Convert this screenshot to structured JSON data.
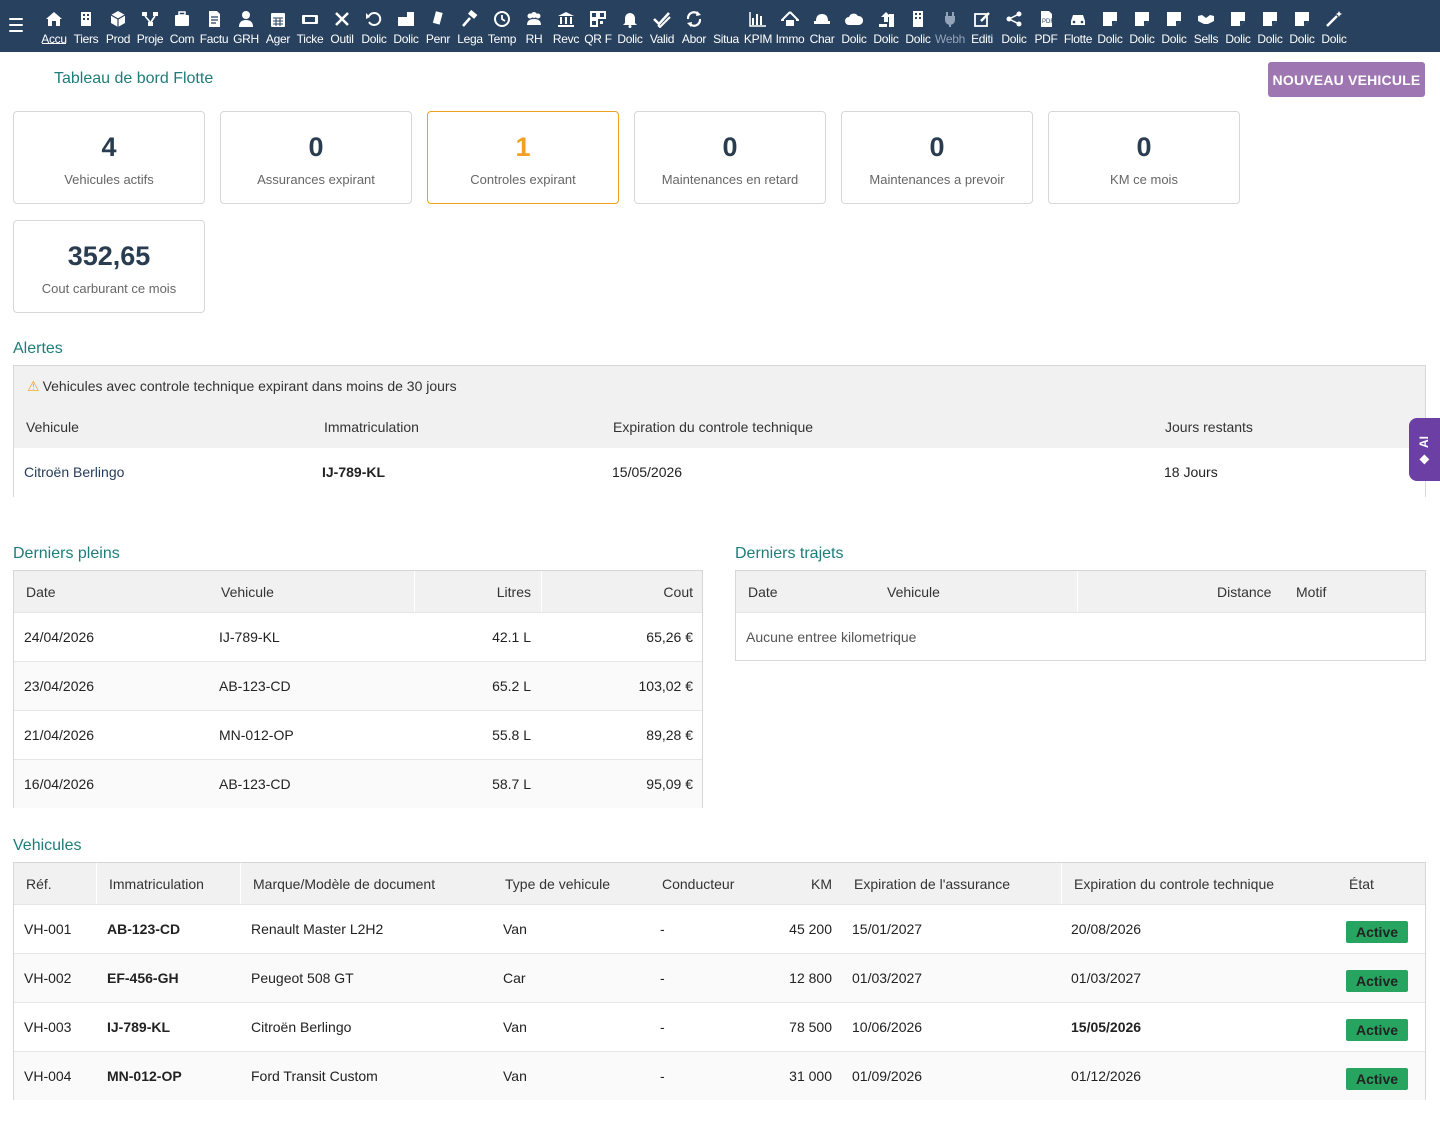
{
  "topbar": {
    "menu": [
      {
        "label": "Accu",
        "icon": "home-icon"
      },
      {
        "label": "Tiers",
        "icon": "building-icon"
      },
      {
        "label": "Prod",
        "icon": "cube-icon"
      },
      {
        "label": "Proje",
        "icon": "sitemap-icon"
      },
      {
        "label": "Com",
        "icon": "briefcase-icon"
      },
      {
        "label": "Factu",
        "icon": "invoice-icon"
      },
      {
        "label": "GRH",
        "icon": "user-tie-icon"
      },
      {
        "label": "Ager",
        "icon": "calendar-icon"
      },
      {
        "label": "Ticke",
        "icon": "ticket-icon"
      },
      {
        "label": "Outil",
        "icon": "tools-icon"
      },
      {
        "label": "Dolic",
        "icon": "undo-icon"
      },
      {
        "label": "Dolic",
        "icon": "briefcase-file-icon"
      },
      {
        "label": "Penr",
        "icon": "pen-icon"
      },
      {
        "label": "Lega",
        "icon": "gavel-icon"
      },
      {
        "label": "Temp",
        "icon": "clock-icon"
      },
      {
        "label": "RH",
        "icon": "users-icon"
      },
      {
        "label": "Revc",
        "icon": "bank-icon"
      },
      {
        "label": "QR F",
        "icon": "qrcode-icon"
      },
      {
        "label": "Dolic",
        "icon": "bell-icon"
      },
      {
        "label": "Valid",
        "icon": "check-double-icon"
      },
      {
        "label": "Abor",
        "icon": "sync-icon"
      },
      {
        "label": "Situa",
        "icon": "blank-icon"
      },
      {
        "label": "KPIM",
        "icon": "bar-chart-icon"
      },
      {
        "label": "Immo",
        "icon": "house-icon"
      },
      {
        "label": "Char",
        "icon": "hat-icon"
      },
      {
        "label": "Dolic",
        "icon": "cloud-icon"
      },
      {
        "label": "Dolic",
        "icon": "upload-file-icon"
      },
      {
        "label": "Dolic",
        "icon": "office-building-icon"
      },
      {
        "label": "Webh",
        "icon": "plug-icon"
      },
      {
        "label": "Editi",
        "icon": "edit-icon"
      },
      {
        "label": "Dolic",
        "icon": "share-icon"
      },
      {
        "label": "PDF",
        "icon": "pdf-file-icon"
      },
      {
        "label": "Flotte",
        "icon": "car-icon"
      },
      {
        "label": "Dolic",
        "icon": "sticky-note-icon"
      },
      {
        "label": "Dolic",
        "icon": "sticky-note-icon"
      },
      {
        "label": "Dolic",
        "icon": "sticky-note-icon"
      },
      {
        "label": "Sells",
        "icon": "handshake-icon"
      },
      {
        "label": "Dolic",
        "icon": "sticky-note-icon"
      },
      {
        "label": "Dolic",
        "icon": "sticky-note-icon"
      },
      {
        "label": "Dolic",
        "icon": "sticky-note-icon"
      },
      {
        "label": "Dolic",
        "icon": "magic-wand-icon"
      }
    ]
  },
  "header": {
    "title": "Tableau de bord Flotte",
    "new_button": "NOUVEAU VEHICULE"
  },
  "stats": [
    {
      "value": "4",
      "label": "Vehicules actifs"
    },
    {
      "value": "0",
      "label": "Assurances expirant"
    },
    {
      "value": "1",
      "label": "Controles expirant"
    },
    {
      "value": "0",
      "label": "Maintenances en retard"
    },
    {
      "value": "0",
      "label": "Maintenances a prevoir"
    },
    {
      "value": "0",
      "label": "KM ce mois"
    },
    {
      "value": "352,65",
      "label": "Cout carburant ce mois"
    }
  ],
  "alerts": {
    "title": "Alertes",
    "message": "Vehicules avec controle technique expirant dans moins de 30 jours",
    "columns": [
      "Vehicule",
      "Immatriculation",
      "Expiration du controle technique",
      "Jours restants"
    ],
    "rows": [
      {
        "vehicle": "Citroën Berlingo",
        "plate": "IJ-789-KL",
        "expiry": "15/05/2026",
        "days": "18 Jours"
      }
    ]
  },
  "fuel": {
    "title": "Derniers pleins",
    "columns": [
      "Date",
      "Vehicule",
      "Litres",
      "Cout"
    ],
    "rows": [
      {
        "date": "24/04/2026",
        "vehicle": "IJ-789-KL",
        "litres": "42.1 L",
        "cost": "65,26 €"
      },
      {
        "date": "23/04/2026",
        "vehicle": "AB-123-CD",
        "litres": "65.2 L",
        "cost": "103,02 €"
      },
      {
        "date": "21/04/2026",
        "vehicle": "MN-012-OP",
        "litres": "55.8 L",
        "cost": "89,28 €"
      },
      {
        "date": "16/04/2026",
        "vehicle": "AB-123-CD",
        "litres": "58.7 L",
        "cost": "95,09 €"
      }
    ]
  },
  "trips": {
    "title": "Derniers trajets",
    "columns": [
      "Date",
      "Vehicule",
      "Distance",
      "Motif"
    ],
    "empty": "Aucune entree kilometrique"
  },
  "vehicles": {
    "title": "Vehicules",
    "columns": [
      "Réf.",
      "Immatriculation",
      "Marque/Modèle de document",
      "Type de vehicule",
      "Conducteur",
      "KM",
      "Expiration de l'assurance",
      "Expiration du controle technique",
      "État"
    ],
    "rows": [
      {
        "ref": "VH-001",
        "plate": "AB-123-CD",
        "model": "Renault Master L2H2",
        "type": "Van",
        "driver": "-",
        "km": "45 200",
        "insurance": "15/01/2027",
        "inspection": "20/08/2026",
        "status": "Active"
      },
      {
        "ref": "VH-002",
        "plate": "EF-456-GH",
        "model": "Peugeot 508 GT",
        "type": "Car",
        "driver": "-",
        "km": "12 800",
        "insurance": "01/03/2027",
        "inspection": "01/03/2027",
        "status": "Active"
      },
      {
        "ref": "VH-003",
        "plate": "IJ-789-KL",
        "model": "Citroën Berlingo",
        "type": "Van",
        "driver": "-",
        "km": "78 500",
        "insurance": "10/06/2026",
        "inspection": "15/05/2026",
        "status": "Active"
      },
      {
        "ref": "VH-004",
        "plate": "MN-012-OP",
        "model": "Ford Transit Custom",
        "type": "Van",
        "driver": "-",
        "km": "31 000",
        "insurance": "01/09/2026",
        "inspection": "01/12/2026",
        "status": "Active"
      }
    ]
  },
  "ai_tab": {
    "label": "AI",
    "icon": "sparkle-icon"
  },
  "colors": {
    "topbar": "#27415f",
    "accent_title": "#1e7d7a",
    "button": "#9e77b2",
    "warning": "#f1a022",
    "status_active": "#27a560",
    "expiring_date": "#8b0000",
    "ai_tab": "#6b3fa3"
  }
}
